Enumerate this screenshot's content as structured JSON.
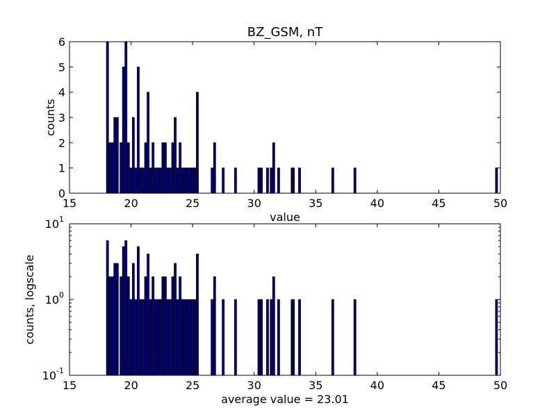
{
  "chart_data": [
    {
      "type": "bar",
      "title": "BZ_GSM, nT",
      "xlabel": "value",
      "ylabel": "counts",
      "xlim": [
        15,
        50
      ],
      "ylim": [
        0,
        6
      ],
      "xticks": [
        "15",
        "20",
        "25",
        "30",
        "35",
        "40",
        "45",
        "50"
      ],
      "yticks": [
        "0",
        "1",
        "2",
        "3",
        "4",
        "5",
        "6"
      ],
      "yscale": "linear",
      "bar_color": "#00008b",
      "bin_width": 0.17,
      "x": [
        18.0,
        18.2,
        18.4,
        18.6,
        18.8,
        19.1,
        19.3,
        19.5,
        19.7,
        19.9,
        20.1,
        20.3,
        20.5,
        20.7,
        20.9,
        21.1,
        21.3,
        21.5,
        21.7,
        21.9,
        22.1,
        22.3,
        22.5,
        22.7,
        22.9,
        23.1,
        23.3,
        23.5,
        23.7,
        23.9,
        24.1,
        24.3,
        24.5,
        24.7,
        24.9,
        25.1,
        25.3,
        26.5,
        26.7,
        27.4,
        28.4,
        30.3,
        30.5,
        31.0,
        31.3,
        31.5,
        31.9,
        33.0,
        33.1,
        33.6,
        36.3,
        38.1,
        49.6
      ],
      "values": [
        6,
        2,
        2,
        3,
        3,
        2,
        5,
        6,
        2,
        1,
        3,
        1,
        5,
        1,
        1,
        2,
        4,
        1,
        2,
        1,
        1,
        1,
        2,
        2,
        1,
        1,
        2,
        3,
        1,
        2,
        1,
        1,
        1,
        1,
        1,
        1,
        4,
        1,
        2,
        1,
        1,
        1,
        1,
        1,
        1,
        2,
        1,
        1,
        1,
        1,
        1,
        1,
        1
      ]
    },
    {
      "type": "bar",
      "title": "",
      "xlabel": "average value = 23.01",
      "ylabel": "counts, logscale",
      "xlim": [
        15,
        50
      ],
      "ylim": [
        0.1,
        10
      ],
      "xticks": [
        "15",
        "20",
        "25",
        "30",
        "35",
        "40",
        "45",
        "50"
      ],
      "yticks_log": [
        {
          "value": 0.1,
          "base": "10",
          "exp": "-1"
        },
        {
          "value": 1,
          "base": "10",
          "exp": "0"
        },
        {
          "value": 10,
          "base": "10",
          "exp": "1"
        }
      ],
      "yscale": "log",
      "bar_color": "#00008b",
      "bin_width": 0.17,
      "same_data_as": 0
    }
  ]
}
